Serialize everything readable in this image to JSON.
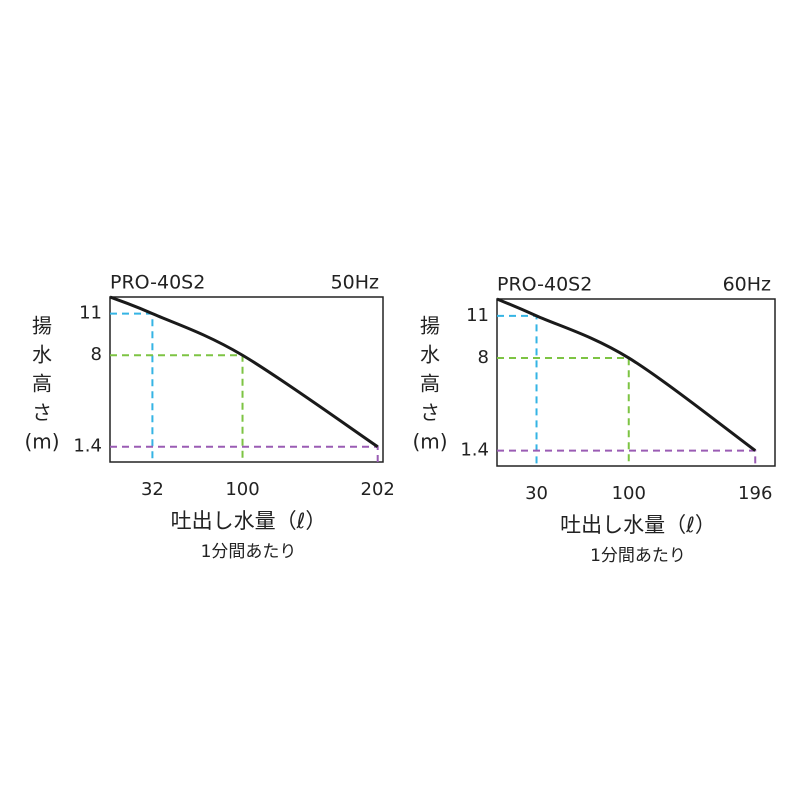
{
  "chart_data": [
    {
      "type": "line",
      "title": "PRO-40S2",
      "subtitle": "50Hz",
      "ylabel": [
        "揚",
        "水",
        "高",
        "さ",
        "(m)"
      ],
      "xlabel": "吐出し水量（ℓ）",
      "xsublabel": "1分間あたり",
      "x": [
        0,
        32,
        100,
        202
      ],
      "series": [
        {
          "color": "#1a1a1a",
          "values": [
            12.2,
            11,
            8,
            1.4
          ]
        }
      ],
      "guide_colors": [
        "#35b4e4",
        "#7dc443",
        "#9a5cb4"
      ],
      "xlim": [
        0,
        206
      ],
      "ylim": [
        0.3,
        12.2
      ],
      "xticks": [
        32,
        100,
        202
      ],
      "yticks": [
        1.4,
        8,
        11
      ]
    },
    {
      "type": "line",
      "title": "PRO-40S2",
      "subtitle": "60Hz",
      "ylabel": [
        "揚",
        "水",
        "高",
        "さ",
        "(m)"
      ],
      "xlabel": "吐出し水量（ℓ）",
      "xsublabel": "1分間あたり",
      "x": [
        0,
        30,
        100,
        196
      ],
      "series": [
        {
          "color": "#1a1a1a",
          "values": [
            12.2,
            11,
            8,
            1.4
          ]
        }
      ],
      "guide_colors": [
        "#35b4e4",
        "#7dc443",
        "#9a5cb4"
      ],
      "xlim": [
        0,
        211
      ],
      "ylim": [
        0.3,
        12.2
      ],
      "xticks": [
        30,
        100,
        196
      ],
      "yticks": [
        1.4,
        8,
        11
      ]
    }
  ]
}
